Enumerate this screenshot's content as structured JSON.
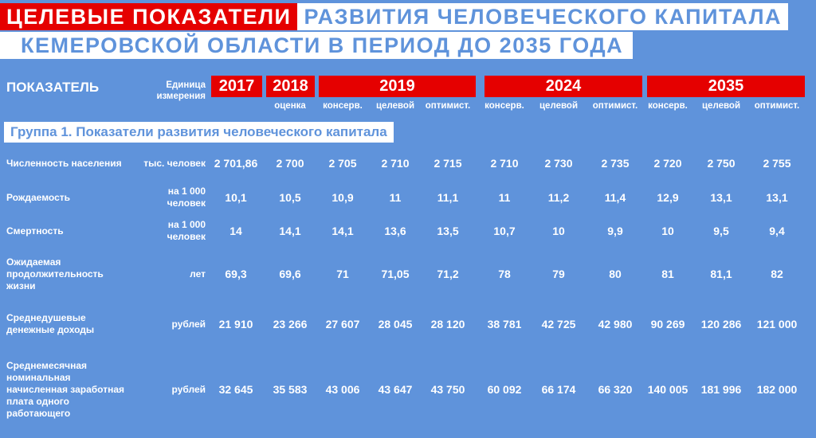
{
  "title": {
    "red": "ЦЕЛЕВЫЕ ПОКАЗАТЕЛИ",
    "line1_rest": "РАЗВИТИЯ ЧЕЛОВЕЧЕСКОГО КАПИТАЛА",
    "line2": "КЕМЕРОВСКОЙ ОБЛАСТИ В ПЕРИОД ДО 2035 ГОДА"
  },
  "colors": {
    "background": "#5f93db",
    "accent_red": "#e50000",
    "white": "#ffffff"
  },
  "header": {
    "indicator": "ПОКАЗАТЕЛЬ",
    "unit": "Единица измерения",
    "years": [
      "2017",
      "2018",
      "2019",
      "2024",
      "2035"
    ],
    "subheaders": [
      "оценка",
      "консерв.",
      "целевой",
      "оптимист.",
      "консерв.",
      "целевой",
      "оптимист.",
      "консерв.",
      "целевой",
      "оптимист."
    ]
  },
  "group_title": "Группа 1. Показатели развития человеческого капитала",
  "rows": [
    {
      "label": "Численность населения",
      "unit": "тыс. человек",
      "values": [
        "2 701,86",
        "2 700",
        "2 705",
        "2 710",
        "2 715",
        "2 710",
        "2 730",
        "2 735",
        "2 720",
        "2 750",
        "2 755"
      ]
    },
    {
      "label": "Рождаемость",
      "unit": "на 1 000 человек",
      "values": [
        "10,1",
        "10,5",
        "10,9",
        "11",
        "11,1",
        "11",
        "11,2",
        "11,4",
        "12,9",
        "13,1",
        "13,1"
      ]
    },
    {
      "label": "Смертность",
      "unit": "на 1 000 человек",
      "values": [
        "14",
        "14,1",
        "14,1",
        "13,6",
        "13,5",
        "10,7",
        "10",
        "9,9",
        "10",
        "9,5",
        "9,4"
      ]
    },
    {
      "label": "Ожидаемая продолжительность жизни",
      "unit": "лет",
      "values": [
        "69,3",
        "69,6",
        "71",
        "71,05",
        "71,2",
        "78",
        "79",
        "80",
        "81",
        "81,1",
        "82"
      ]
    },
    {
      "label": "Среднедушевые денежные доходы",
      "unit": "рублей",
      "values": [
        "21 910",
        "23 266",
        "27 607",
        "28 045",
        "28 120",
        "38 781",
        "42 725",
        "42 980",
        "90 269",
        "120 286",
        "121 000"
      ]
    },
    {
      "label": "Среднемесячная номинальная начисленная заработная плата одного работающего",
      "unit": "рублей",
      "values": [
        "32 645",
        "35 583",
        "43 006",
        "43 647",
        "43 750",
        "60 092",
        "66 174",
        "66 320",
        "140 005",
        "181 996",
        "182 000"
      ]
    }
  ]
}
